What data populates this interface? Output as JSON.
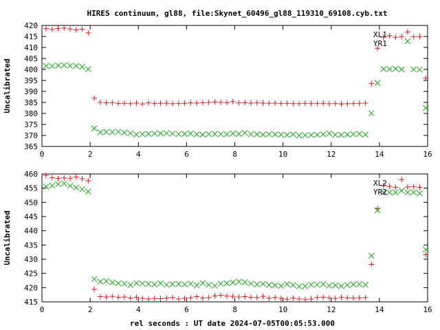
{
  "page_title": "HIRES continuum, gl88, file:Skynet_60496_gl88_119310_69108.cyb.txt",
  "x_axis_label": "rel seconds : UT date 2024-07-05T00:05:53.000",
  "colors": {
    "series_plus": "#e0161f",
    "series_cross": "#1aa31a",
    "axes": "#000000"
  },
  "chart_data": [
    {
      "type": "scatter",
      "ylabel": "Uncalibrated",
      "xlim": [
        0,
        16
      ],
      "ylim": [
        365,
        420
      ],
      "x_ticks": [
        0,
        2,
        4,
        6,
        8,
        10,
        12,
        14,
        16
      ],
      "y_ticks": [
        365,
        370,
        375,
        380,
        385,
        390,
        395,
        400,
        405,
        410,
        415,
        420
      ],
      "legend_position": "top-right",
      "grid": false,
      "series": [
        {
          "name": "XL1",
          "marker": "plus",
          "color": "#e0161f",
          "x": [
            0.17,
            0.42,
            0.67,
            0.92,
            1.17,
            1.42,
            1.67,
            1.92,
            2.17,
            2.42,
            2.67,
            2.92,
            3.17,
            3.42,
            3.67,
            3.92,
            4.17,
            4.42,
            4.67,
            4.92,
            5.17,
            5.42,
            5.67,
            5.92,
            6.17,
            6.42,
            6.67,
            6.92,
            7.17,
            7.42,
            7.67,
            7.92,
            8.17,
            8.42,
            8.67,
            8.92,
            9.17,
            9.42,
            9.67,
            9.92,
            10.17,
            10.42,
            10.67,
            10.92,
            11.17,
            11.42,
            11.67,
            11.92,
            12.17,
            12.42,
            12.67,
            12.92,
            13.17,
            13.42,
            13.67,
            13.92,
            14.17,
            14.42,
            14.67,
            14.92,
            15.17,
            15.42,
            15.67,
            15.92
          ],
          "y": [
            418.5,
            418.2,
            418.6,
            418.8,
            418.4,
            418.0,
            418.3,
            416.6,
            386.9,
            385.0,
            384.8,
            384.9,
            384.5,
            384.6,
            384.4,
            384.7,
            384.3,
            384.8,
            384.5,
            384.6,
            384.7,
            384.4,
            384.5,
            384.6,
            384.8,
            384.7,
            384.9,
            385.0,
            385.2,
            385.0,
            384.9,
            385.4,
            384.8,
            384.9,
            384.7,
            384.8,
            384.7,
            384.6,
            384.7,
            384.5,
            384.6,
            384.5,
            384.4,
            384.6,
            384.5,
            384.5,
            384.6,
            384.4,
            384.5,
            384.3,
            384.4,
            384.5,
            384.6,
            384.7,
            393.6,
            409.6,
            414.7,
            415.3,
            414.6,
            414.9,
            417.0,
            414.8,
            414.9,
            396.0
          ]
        },
        {
          "name": "YR1",
          "marker": "cross",
          "color": "#1aa31a",
          "x": [
            0.17,
            0.42,
            0.67,
            0.92,
            1.17,
            1.42,
            1.67,
            1.92,
            2.17,
            2.42,
            2.67,
            2.92,
            3.17,
            3.42,
            3.67,
            3.92,
            4.17,
            4.42,
            4.67,
            4.92,
            5.17,
            5.42,
            5.67,
            5.92,
            6.17,
            6.42,
            6.67,
            6.92,
            7.17,
            7.42,
            7.67,
            7.92,
            8.17,
            8.42,
            8.67,
            8.92,
            9.17,
            9.42,
            9.67,
            9.92,
            10.17,
            10.42,
            10.67,
            10.92,
            11.17,
            11.42,
            11.67,
            11.92,
            12.17,
            12.42,
            12.67,
            12.92,
            13.17,
            13.42,
            13.67,
            13.92,
            14.17,
            14.42,
            14.67,
            14.92,
            15.17,
            15.42,
            15.67,
            15.92
          ],
          "y": [
            401.6,
            401.5,
            401.8,
            401.9,
            401.7,
            401.6,
            401.2,
            400.1,
            373.2,
            371.4,
            371.6,
            371.5,
            371.7,
            371.3,
            371.0,
            370.4,
            370.6,
            370.7,
            370.8,
            370.9,
            371.0,
            370.8,
            370.6,
            370.7,
            370.9,
            370.5,
            370.4,
            370.6,
            370.7,
            370.6,
            370.5,
            370.9,
            370.7,
            371.2,
            370.6,
            370.5,
            370.4,
            370.6,
            370.5,
            370.4,
            370.2,
            370.5,
            370.0,
            370.1,
            370.2,
            370.3,
            370.5,
            370.9,
            370.3,
            370.2,
            370.4,
            370.6,
            370.7,
            370.4,
            380.1,
            393.9,
            400.2,
            400.1,
            400.3,
            400.0,
            412.8,
            400.1,
            399.9,
            382.5
          ]
        }
      ]
    },
    {
      "type": "scatter",
      "ylabel": "Uncalibrated",
      "xlim": [
        0,
        16
      ],
      "ylim": [
        415,
        460
      ],
      "x_ticks": [
        0,
        2,
        4,
        6,
        8,
        10,
        12,
        14,
        16
      ],
      "y_ticks": [
        415,
        420,
        425,
        430,
        435,
        440,
        445,
        450,
        455,
        460
      ],
      "xlabel": "rel seconds : UT date 2024-07-05T00:05:53.000",
      "legend_position": "top-right",
      "grid": false,
      "series": [
        {
          "name": "XL2",
          "marker": "plus",
          "color": "#e0161f",
          "x": [
            0.17,
            0.42,
            0.67,
            0.92,
            1.17,
            1.42,
            1.67,
            1.92,
            2.17,
            2.42,
            2.67,
            2.92,
            3.17,
            3.42,
            3.67,
            3.92,
            4.17,
            4.42,
            4.67,
            4.92,
            5.17,
            5.42,
            5.67,
            5.92,
            6.17,
            6.42,
            6.67,
            6.92,
            7.17,
            7.42,
            7.67,
            7.92,
            8.17,
            8.42,
            8.67,
            8.92,
            9.17,
            9.42,
            9.67,
            9.92,
            10.17,
            10.42,
            10.67,
            10.92,
            11.17,
            11.42,
            11.67,
            11.92,
            12.17,
            12.42,
            12.67,
            12.92,
            13.17,
            13.42,
            13.67,
            13.92,
            14.17,
            14.42,
            14.67,
            14.92,
            15.17,
            15.42,
            15.67,
            15.92
          ],
          "y": [
            459.5,
            458.7,
            458.4,
            458.6,
            458.5,
            458.9,
            458.3,
            457.6,
            419.4,
            416.8,
            416.7,
            416.9,
            416.6,
            416.7,
            416.3,
            416.6,
            416.2,
            416.0,
            416.2,
            416.1,
            416.3,
            416.5,
            416.0,
            416.2,
            416.4,
            416.8,
            416.3,
            416.5,
            417.1,
            417.3,
            417.0,
            416.9,
            416.7,
            416.8,
            416.6,
            416.5,
            416.9,
            416.3,
            416.5,
            416.2,
            415.9,
            416.3,
            416.0,
            415.8,
            416.0,
            416.5,
            416.6,
            416.4,
            416.2,
            416.6,
            416.4,
            416.3,
            416.4,
            416.5,
            428.2,
            447.8,
            455.9,
            455.6,
            455.3,
            458.0,
            455.4,
            455.5,
            455.3,
            431.6
          ]
        },
        {
          "name": "YR2",
          "marker": "cross",
          "color": "#1aa31a",
          "x": [
            0.17,
            0.42,
            0.67,
            0.92,
            1.17,
            1.42,
            1.67,
            1.92,
            2.17,
            2.42,
            2.67,
            2.92,
            3.17,
            3.42,
            3.67,
            3.92,
            4.17,
            4.42,
            4.67,
            4.92,
            5.17,
            5.42,
            5.67,
            5.92,
            6.17,
            6.42,
            6.67,
            6.92,
            7.17,
            7.42,
            7.67,
            7.92,
            8.17,
            8.42,
            8.67,
            8.92,
            9.17,
            9.42,
            9.67,
            9.92,
            10.17,
            10.42,
            10.67,
            10.92,
            11.17,
            11.42,
            11.67,
            11.92,
            12.17,
            12.42,
            12.67,
            12.92,
            13.17,
            13.42,
            13.67,
            13.92,
            14.17,
            14.42,
            14.67,
            14.92,
            15.17,
            15.42,
            15.67,
            15.92
          ],
          "y": [
            455.5,
            455.9,
            456.4,
            456.6,
            455.8,
            455.2,
            454.6,
            453.8,
            423.0,
            422.1,
            422.3,
            421.8,
            421.5,
            421.4,
            420.9,
            421.6,
            421.4,
            421.3,
            421.1,
            421.5,
            421.0,
            421.2,
            421.3,
            421.1,
            421.4,
            420.8,
            421.6,
            421.0,
            420.7,
            421.4,
            421.5,
            421.8,
            422.1,
            421.9,
            421.4,
            421.1,
            421.3,
            420.9,
            420.8,
            420.6,
            421.2,
            420.9,
            420.4,
            420.5,
            421.0,
            421.0,
            421.2,
            420.7,
            420.8,
            420.5,
            420.9,
            421.1,
            421.2,
            421.0,
            431.2,
            447.2,
            453.5,
            453.5,
            453.5,
            454.1,
            453.5,
            453.5,
            453.2,
            433.4
          ]
        }
      ]
    }
  ]
}
